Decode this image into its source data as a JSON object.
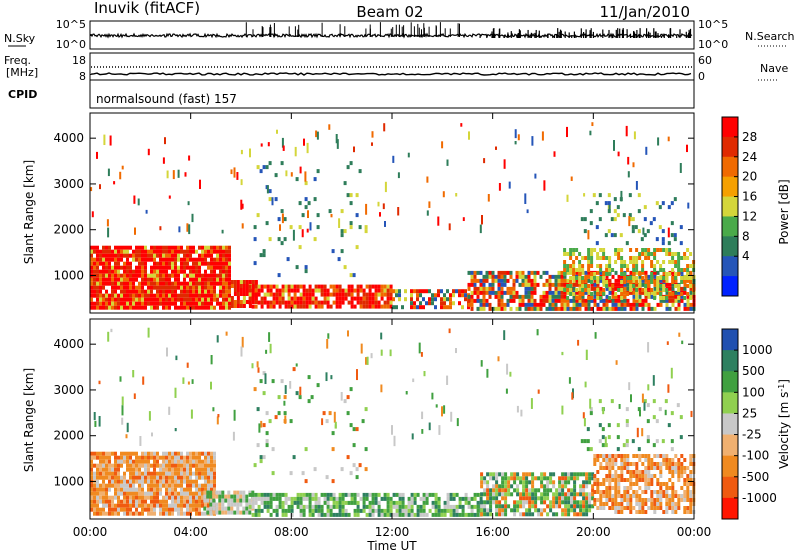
{
  "header": {
    "title_left": "Inuvik (fitACF)",
    "title_center": "Beam 02",
    "title_right": "11/Jan/2010"
  },
  "strips": {
    "nsky_label": "N.Sky",
    "nsky_ticks": [
      "10^5",
      "10^0"
    ],
    "nsearch_label": "N.Search",
    "nsearch_ticks": [
      "10^5",
      "10^0"
    ],
    "freq_label_1": "Freq.",
    "freq_label_2": "[MHz]",
    "freq_ticks": [
      "18",
      "8"
    ],
    "nave_label": "Nave",
    "nave_ticks": [
      "60",
      "0"
    ],
    "cpid_label": "CPID",
    "cpid_value": "normalsound (fast) 157"
  },
  "colors": {
    "power_scale": [
      "#0022ff",
      "#2555b8",
      "#2e7d5a",
      "#4aaa4a",
      "#d4d63a",
      "#f5a000",
      "#f06a00",
      "#e02a00",
      "#ff0000"
    ],
    "velocity_scale": [
      "#ff1500",
      "#f05a10",
      "#f08a20",
      "#f0b070",
      "#c8c8c8",
      "#90d050",
      "#40a040",
      "#2e8060",
      "#2050b0"
    ]
  },
  "chart_data": [
    {
      "type": "heatmap",
      "title": "",
      "xlabel": "",
      "ylabel": "Slant Range [km]",
      "x_ticks": [
        "00:00",
        "04:00",
        "08:00",
        "12:00",
        "16:00",
        "20:00",
        "00:00"
      ],
      "x_range_hours": [
        0,
        24
      ],
      "ylim": [
        180,
        4550
      ],
      "y_ticks": [
        1000,
        2000,
        3000,
        4000
      ],
      "colorbar": {
        "label": "Power [dB]",
        "range": [
          0,
          30
        ],
        "tick_labels": [
          "4",
          "8",
          "12",
          "16",
          "20",
          "24",
          "28"
        ]
      },
      "echo_regions": [
        {
          "t0": 0.0,
          "t1": 5.6,
          "r0": 300,
          "r1": 1650,
          "level": "high",
          "density": 0.92
        },
        {
          "t0": 5.6,
          "t1": 6.6,
          "r0": 300,
          "r1": 900,
          "level": "high",
          "density": 0.85
        },
        {
          "t0": 6.3,
          "t1": 12.0,
          "r0": 280,
          "r1": 800,
          "level": "high",
          "density": 0.8
        },
        {
          "t0": 12.0,
          "t1": 15.0,
          "r0": 300,
          "r1": 700,
          "level": "mixed",
          "density": 0.6
        },
        {
          "t0": 15.0,
          "t1": 24.0,
          "r0": 300,
          "r1": 1100,
          "level": "mixed",
          "density": 0.8
        },
        {
          "t0": 18.8,
          "t1": 24.0,
          "r0": 500,
          "r1": 1600,
          "level": "mid",
          "density": 0.45
        },
        {
          "t0": 19.5,
          "t1": 23.5,
          "r0": 1700,
          "r1": 2800,
          "level": "low",
          "density": 0.12
        },
        {
          "t0": 6.5,
          "t1": 11.0,
          "r0": 1000,
          "r1": 3500,
          "level": "low",
          "density": 0.05
        }
      ]
    },
    {
      "type": "heatmap",
      "title": "",
      "xlabel": "Time UT",
      "ylabel": "Slant Range [km]",
      "x_ticks": [
        "00:00",
        "04:00",
        "08:00",
        "12:00",
        "16:00",
        "20:00",
        "00:00"
      ],
      "x_range_hours": [
        0,
        24
      ],
      "ylim": [
        180,
        4550
      ],
      "y_ticks": [
        1000,
        2000,
        3000,
        4000
      ],
      "colorbar": {
        "label": "Velocity [m s^-1]",
        "tick_labels": [
          "1000",
          "500",
          "100",
          "25",
          "-25",
          "-100",
          "-500",
          "-1000"
        ]
      },
      "echo_regions": [
        {
          "t0": 0.0,
          "t1": 5.0,
          "r0": 300,
          "r1": 1650,
          "level": "negative",
          "density": 0.9
        },
        {
          "t0": 4.5,
          "t1": 6.5,
          "r0": 300,
          "r1": 800,
          "level": "near-zero",
          "density": 0.85
        },
        {
          "t0": 6.3,
          "t1": 15.5,
          "r0": 250,
          "r1": 750,
          "level": "positive",
          "density": 0.75
        },
        {
          "t0": 15.5,
          "t1": 20.0,
          "r0": 250,
          "r1": 1200,
          "level": "mixed",
          "density": 0.75
        },
        {
          "t0": 20.0,
          "t1": 24.0,
          "r0": 300,
          "r1": 1600,
          "level": "negative",
          "density": 0.7
        },
        {
          "t0": 19.5,
          "t1": 23.5,
          "r0": 1700,
          "r1": 2800,
          "level": "positive",
          "density": 0.12
        },
        {
          "t0": 6.5,
          "t1": 11.0,
          "r0": 1000,
          "r1": 3500,
          "level": "mixed",
          "density": 0.05
        }
      ]
    }
  ]
}
